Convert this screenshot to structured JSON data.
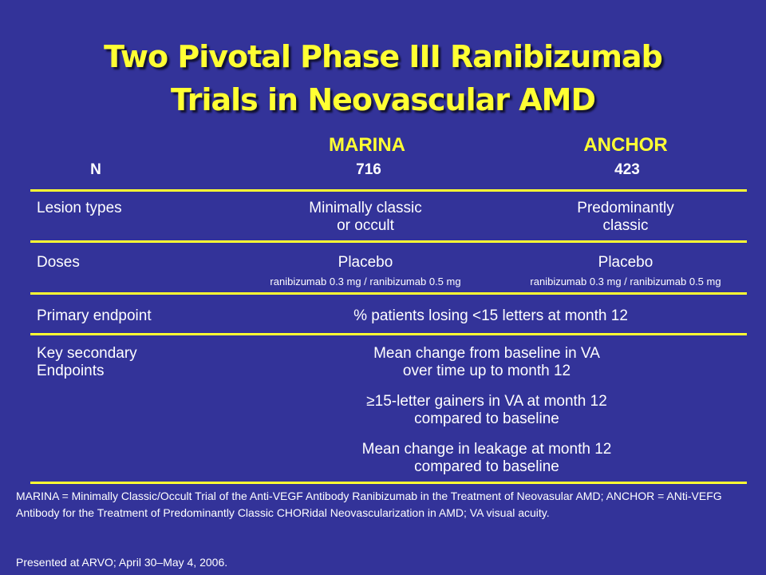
{
  "slide": {
    "title_line1": "Two Pivotal Phase III Ranibizumab",
    "title_line2": "Trials in Neovascular AMD",
    "columns": {
      "marina": "MARINA",
      "anchor": "ANCHOR"
    },
    "n_row": {
      "label": "N",
      "marina": "716",
      "anchor": "423"
    },
    "lesion_row": {
      "label": "Lesion types",
      "marina_line1": "Minimally classic",
      "marina_line2": "or occult",
      "anchor_line1": "Predominantly",
      "anchor_line2": "classic"
    },
    "doses_row": {
      "label": "Doses",
      "marina_main": "Placebo",
      "marina_sub": "ranibizumab 0.3 mg / ranibizumab 0.5 mg",
      "anchor_main": "Placebo",
      "anchor_sub": "ranibizumab 0.3 mg / ranibizumab 0.5 mg"
    },
    "primary_row": {
      "label": "Primary endpoint",
      "value": "% patients losing <15 letters at month 12"
    },
    "secondary_row": {
      "label_line1": "Key secondary",
      "label_line2": "Endpoints",
      "item1_line1": "Mean change from baseline in VA",
      "item1_line2": "over time up to month 12",
      "item2_line1": "≥15-letter gainers in VA at month 12",
      "item2_line2": "compared to baseline",
      "item3_line1": "Mean change in leakage at month 12",
      "item3_line2": "compared to baseline"
    },
    "footnote": "MARINA = Minimally Classic/Occult Trial of the Anti-VEGF Antibody Ranibizumab in the Treatment of Neovasular AMD; ANCHOR = ANti-VEFG Antibody for the Treatment of Predominantly Classic CHORidal Neovascularization in AMD; VA visual acuity.",
    "presented": "Presented at ARVO; April 30–May 4, 2006."
  },
  "colors": {
    "background": "#333399",
    "title": "#ffff33",
    "rules": "#ffff33",
    "text": "#ffffff"
  }
}
